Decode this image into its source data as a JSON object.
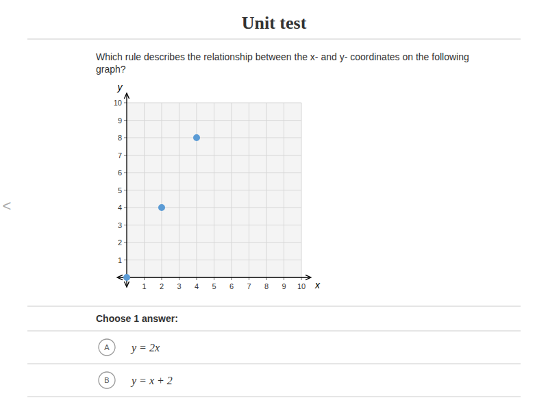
{
  "chart_data": {
    "type": "scatter",
    "title": "Unit test",
    "annotations": [
      "Which rule describes the relationship between the x- and y- coordinates on the following",
      "graph?",
      "Choose 1 answer:",
      "A",
      "y = 2x",
      "B",
      "y = x + 2",
      "<"
    ],
    "x": [
      0,
      2,
      4
    ],
    "values": [
      0,
      4,
      8
    ],
    "color": "#5b9bd5",
    "xlabel": "x",
    "ylabel": "y",
    "xlim": [
      0,
      10
    ],
    "ylim": [
      0,
      10
    ],
    "xticks": [
      1,
      2,
      3,
      4,
      5,
      6,
      7,
      8,
      9,
      10
    ],
    "yticks": [
      1,
      2,
      3,
      4,
      5,
      6,
      7,
      8,
      9,
      10
    ],
    "grid": true
  }
}
